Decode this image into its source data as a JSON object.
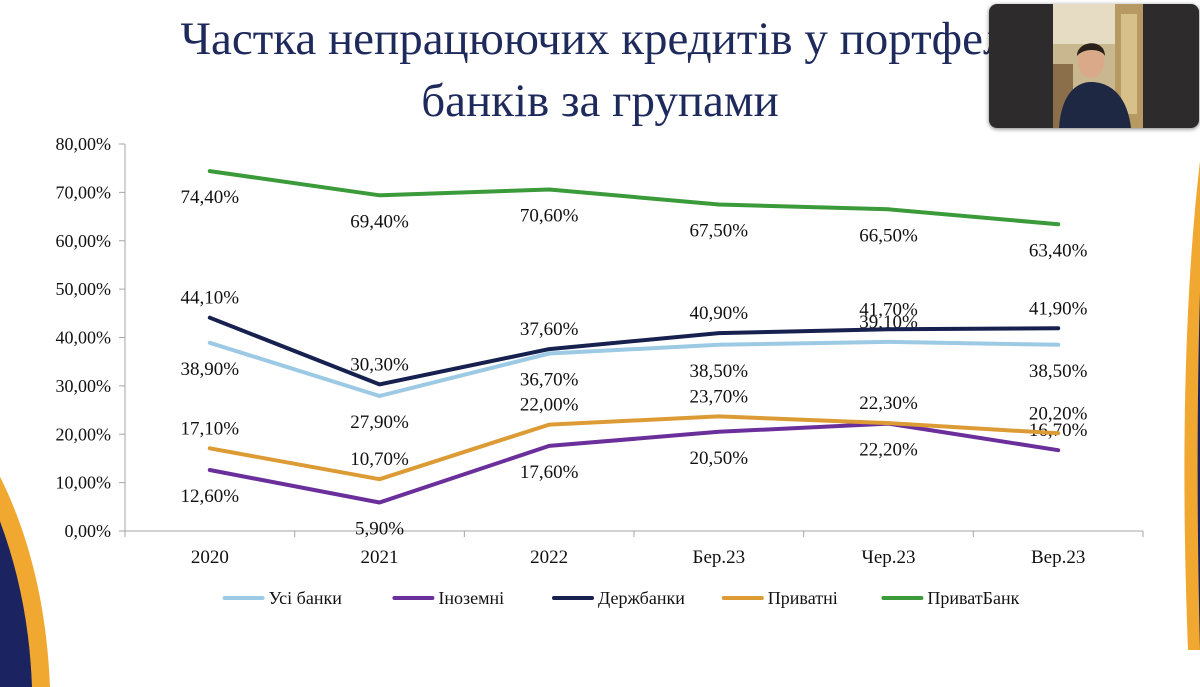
{
  "slide": {
    "title_line1": "Частка непрацюючих кредитів у портфелі",
    "title_line2": "банків за групами"
  },
  "video_tile": {
    "icon": "participant-video"
  },
  "colors": {
    "title": "#1e2a5c",
    "navy_decor": "#1b2460",
    "gold_decor": "#f0a830"
  },
  "chart_data": {
    "type": "line",
    "categories": [
      "2020",
      "2021",
      "2022",
      "Бер.23",
      "Чер.23",
      "Вер.23"
    ],
    "ylim": [
      0,
      80
    ],
    "yticks": [
      "0,00%",
      "10,00%",
      "20,00%",
      "30,00%",
      "40,00%",
      "50,00%",
      "60,00%",
      "70,00%",
      "80,00%"
    ],
    "legend_position": "bottom",
    "series": [
      {
        "name": "Усі банки",
        "color": "#9cc9e3",
        "values": [
          38.9,
          27.9,
          36.7,
          38.5,
          39.1,
          38.5
        ],
        "labels": [
          "38,90%",
          "27,90%",
          "36,70%",
          "38,50%",
          "39,10%",
          "38,50%"
        ],
        "label_side": [
          "below",
          "below",
          "below",
          "below",
          "above",
          "below"
        ]
      },
      {
        "name": "Іноземні",
        "color": "#6a2f9a",
        "values": [
          12.6,
          5.9,
          17.6,
          20.5,
          22.2,
          16.7
        ],
        "labels": [
          "12,60%",
          "5,90%",
          "17,60%",
          "20,50%",
          "22,20%",
          "16,70%"
        ],
        "label_side": [
          "below",
          "below",
          "below",
          "below",
          "below",
          "above"
        ]
      },
      {
        "name": "Держбанки",
        "color": "#16214f",
        "values": [
          44.1,
          30.3,
          37.6,
          40.9,
          41.7,
          41.9
        ],
        "labels": [
          "44,10%",
          "30,30%",
          "37,60%",
          "40,90%",
          "41,70%",
          "41,90%"
        ],
        "label_side": [
          "above",
          "above",
          "above",
          "above",
          "above",
          "above"
        ]
      },
      {
        "name": "Приватні",
        "color": "#dc9b34",
        "values": [
          17.1,
          10.7,
          22.0,
          23.7,
          22.3,
          20.2
        ],
        "labels": [
          "17,10%",
          "10,70%",
          "22,00%",
          "23,70%",
          "22,30%",
          "20,20%"
        ],
        "label_side": [
          "above",
          "above",
          "above",
          "above",
          "above",
          "above"
        ]
      },
      {
        "name": "ПриватБанк",
        "color": "#3b9a3a",
        "values": [
          74.4,
          69.4,
          70.6,
          67.5,
          66.5,
          63.4
        ],
        "labels": [
          "74,40%",
          "69,40%",
          "70,60%",
          "67,50%",
          "66,50%",
          "63,40%"
        ],
        "label_side": [
          "below",
          "below",
          "below",
          "below",
          "below",
          "below"
        ]
      }
    ]
  }
}
